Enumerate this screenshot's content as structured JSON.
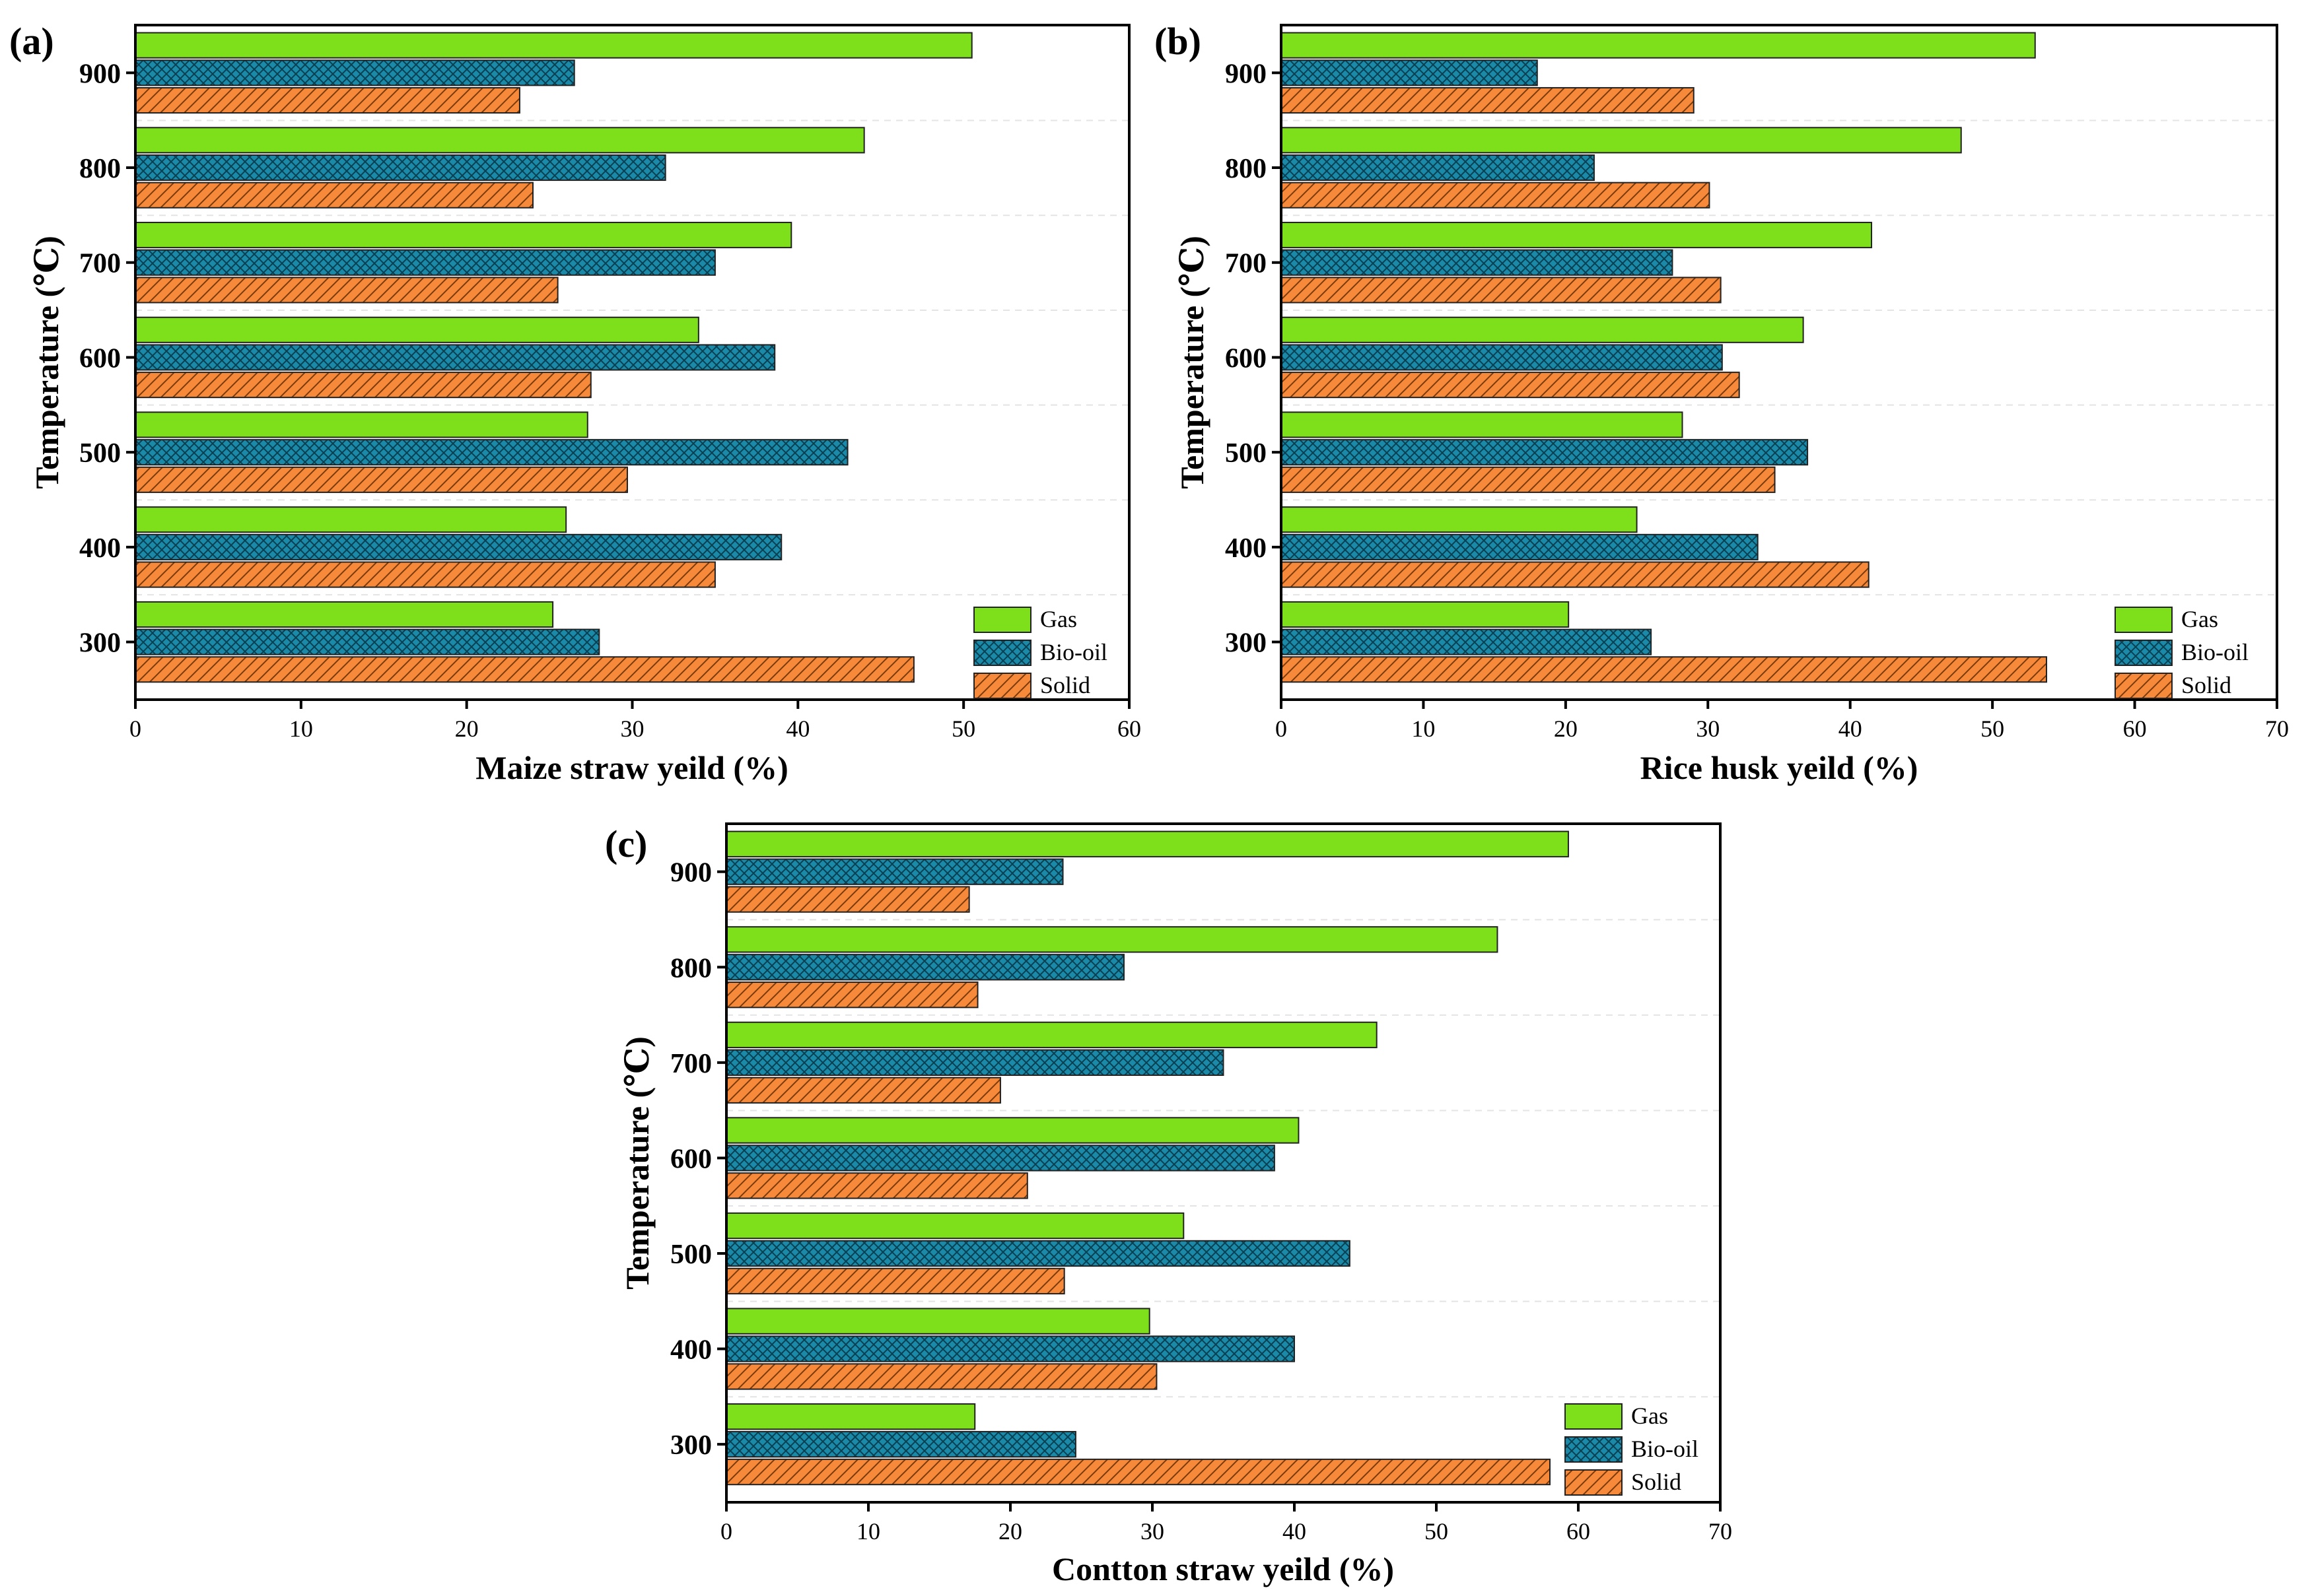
{
  "chart_data": [
    {
      "type": "bar",
      "orientation": "horizontal",
      "panel_label": "(a)",
      "categories": [
        "300",
        "400",
        "500",
        "600",
        "700",
        "800",
        "900"
      ],
      "series": [
        {
          "name": "Gas",
          "values": [
            25.2,
            26.0,
            27.3,
            34.0,
            39.6,
            44.0,
            50.5
          ]
        },
        {
          "name": "Bio-oil",
          "values": [
            28.0,
            39.0,
            43.0,
            38.6,
            35.0,
            32.0,
            26.5
          ]
        },
        {
          "name": "Solid",
          "values": [
            47.0,
            35.0,
            29.7,
            27.5,
            25.5,
            24.0,
            23.2
          ]
        }
      ],
      "xlabel": "Maize straw yeild (%)",
      "ylabel": "Temperature (℃)",
      "xlim": [
        0,
        60
      ],
      "xticks": [
        "0",
        "10",
        "20",
        "30",
        "40",
        "50",
        "60"
      ],
      "legend": "bottom-right"
    },
    {
      "type": "bar",
      "orientation": "horizontal",
      "panel_label": "(b)",
      "categories": [
        "300",
        "400",
        "500",
        "600",
        "700",
        "800",
        "900"
      ],
      "series": [
        {
          "name": "Gas",
          "values": [
            20.2,
            25.0,
            28.2,
            36.7,
            41.5,
            47.8,
            53.0
          ]
        },
        {
          "name": "Bio-oil",
          "values": [
            26.0,
            33.5,
            37.0,
            31.0,
            27.5,
            22.0,
            18.0
          ]
        },
        {
          "name": "Solid",
          "values": [
            53.8,
            41.3,
            34.7,
            32.2,
            30.9,
            30.1,
            29.0
          ]
        }
      ],
      "xlabel": "Rice husk yeild (%)",
      "ylabel": "Temperature (℃)",
      "xlim": [
        0,
        70
      ],
      "xticks": [
        "0",
        "10",
        "20",
        "30",
        "40",
        "50",
        "60",
        "70"
      ],
      "legend": "bottom-right"
    },
    {
      "type": "bar",
      "orientation": "horizontal",
      "panel_label": "(c)",
      "categories": [
        "300",
        "400",
        "500",
        "600",
        "700",
        "800",
        "900"
      ],
      "series": [
        {
          "name": "Gas",
          "values": [
            17.5,
            29.8,
            32.2,
            40.3,
            45.8,
            54.3,
            59.3
          ]
        },
        {
          "name": "Bio-oil",
          "values": [
            24.6,
            40.0,
            43.9,
            38.6,
            35.0,
            28.0,
            23.7
          ]
        },
        {
          "name": "Solid",
          "values": [
            58.0,
            30.3,
            23.8,
            21.2,
            19.3,
            17.7,
            17.1
          ]
        }
      ],
      "xlabel": "Contton straw yeild (%)",
      "ylabel": "Temperature (℃)",
      "xlim": [
        0,
        70
      ],
      "xticks": [
        "0",
        "10",
        "20",
        "30",
        "40",
        "50",
        "60",
        "70"
      ],
      "legend": "bottom-right"
    }
  ],
  "colors": {
    "gas": "#7ee01a",
    "bio_oil": "#1a8aa8",
    "solid": "#f6893a",
    "outline": "#222222"
  }
}
